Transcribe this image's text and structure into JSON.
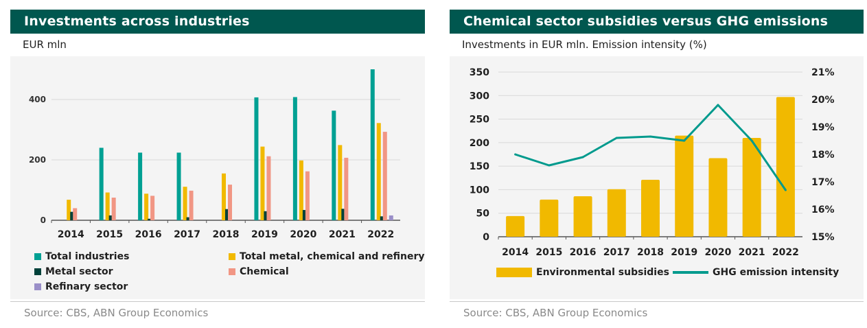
{
  "left": {
    "title": "Investments across industries",
    "subtitle": "EUR mln",
    "source": "Source: CBS, ABN Group Economics"
  },
  "right": {
    "title": "Chemical sector subsidies versus GHG emissions",
    "subtitle": "Investments in EUR mln. Emission intensity (%)",
    "source": "Source: CBS, ABN Group Economics"
  },
  "chart_data": [
    {
      "type": "bar",
      "title": "Investments across industries",
      "ylabel": "EUR mln",
      "ylim": [
        0,
        500
      ],
      "yticks": [
        0,
        200,
        400
      ],
      "grid": true,
      "legend_position": "bottom",
      "categories": [
        "2014",
        "2015",
        "2016",
        "2017",
        "2018",
        "2019",
        "2020",
        "2021",
        "2022"
      ],
      "series": [
        {
          "name": "Total industries",
          "color": "#00a093",
          "values": [
            0,
            240,
            224,
            224,
            0,
            407,
            408,
            363,
            500
          ]
        },
        {
          "name": "Total metal, chemical and refinery",
          "color": "#f1b900",
          "values": [
            68,
            92,
            88,
            111,
            155,
            244,
            198,
            249,
            322
          ]
        },
        {
          "name": "Metal sector",
          "color": "#00413a",
          "values": [
            28,
            16,
            5,
            10,
            37,
            30,
            34,
            38,
            13
          ]
        },
        {
          "name": "Chemical",
          "color": "#f19684",
          "values": [
            40,
            75,
            81,
            98,
            118,
            212,
            162,
            207,
            293
          ]
        },
        {
          "name": "Refinary sector",
          "color": "#9a8fc8",
          "values": [
            0,
            0,
            0,
            0,
            0,
            0,
            0,
            0,
            16
          ]
        }
      ]
    },
    {
      "type": "bar+line",
      "title": "Chemical sector subsidies versus GHG emissions",
      "ylabel": "Investments in EUR mln. Emission intensity (%)",
      "ylim": [
        0,
        350
      ],
      "yticks": [
        0,
        50,
        100,
        150,
        200,
        250,
        300,
        350
      ],
      "y2lim": [
        15,
        21
      ],
      "y2ticks": [
        "15%",
        "16%",
        "17%",
        "18%",
        "19%",
        "20%",
        "21%"
      ],
      "grid": true,
      "legend_position": "bottom",
      "categories": [
        "2014",
        "2015",
        "2016",
        "2017",
        "2018",
        "2019",
        "2020",
        "2021",
        "2022"
      ],
      "series": [
        {
          "name": "Environmental subsidies",
          "type": "bar",
          "axis": "left",
          "color": "#f1b900",
          "values": [
            44,
            79,
            86,
            101,
            121,
            215,
            167,
            210,
            297
          ]
        },
        {
          "name": "GHG emission intensity",
          "type": "line",
          "axis": "right",
          "color": "#009a8d",
          "values": [
            18.0,
            17.6,
            17.9,
            18.6,
            18.65,
            18.5,
            19.8,
            18.5,
            16.7
          ]
        }
      ]
    }
  ]
}
